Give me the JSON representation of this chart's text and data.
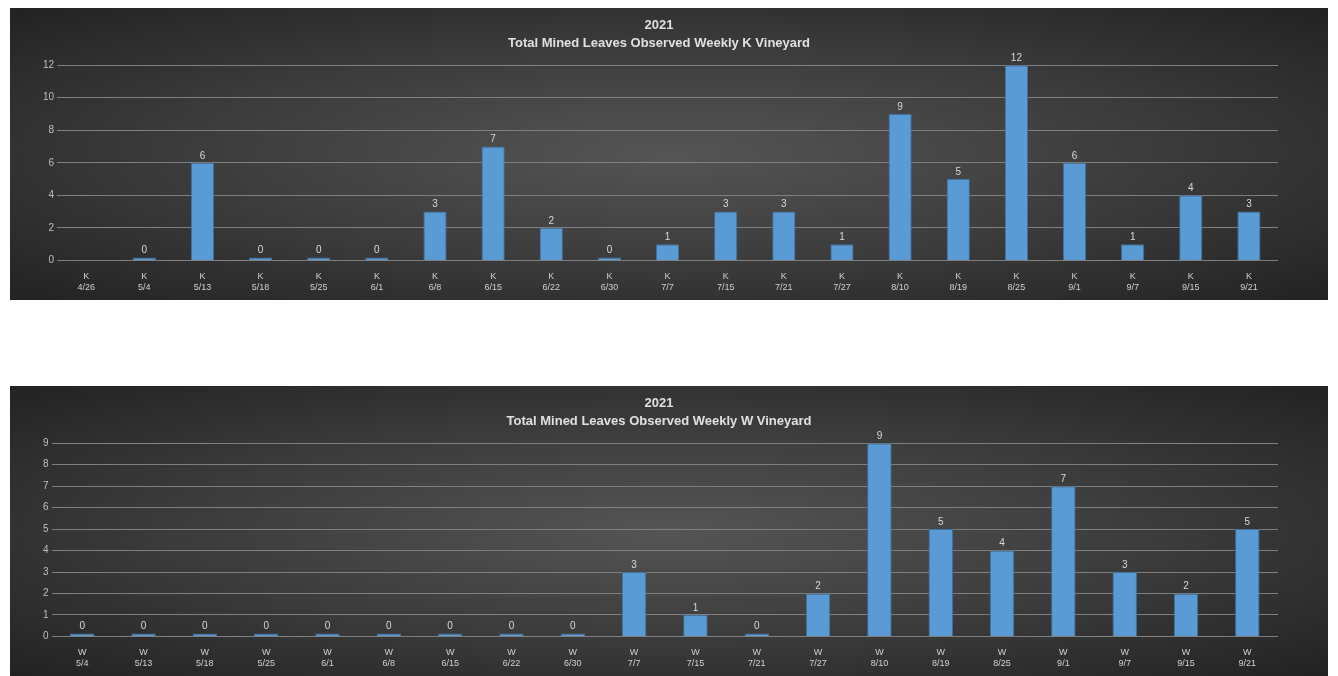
{
  "chart_data": [
    {
      "type": "bar",
      "title": "2021",
      "subtitle": "Total Mined Leaves Observed Weekly K Vineyard",
      "categories": [
        "K\n4/26",
        "K\n5/4",
        "K\n5/13",
        "K\n5/18",
        "K\n5/25",
        "K\n6/1",
        "K\n6/8",
        "K\n6/15",
        "K\n6/22",
        "K\n6/30",
        "K\n7/7",
        "K\n7/15",
        "K\n7/21",
        "K\n7/27",
        "K\n8/10",
        "K\n8/19",
        "K\n8/25",
        "K\n9/1",
        "K\n9/7",
        "K\n9/15",
        "K\n9/21"
      ],
      "values": [
        null,
        0,
        6,
        0,
        0,
        0,
        3,
        7,
        2,
        0,
        1,
        3,
        3,
        1,
        9,
        5,
        12,
        6,
        1,
        4,
        3
      ],
      "color": "#5b9bd5",
      "ylim": [
        0,
        12
      ],
      "yticks": [
        0,
        2,
        4,
        6,
        8,
        10,
        12
      ],
      "grid": "y",
      "data_labels": true
    },
    {
      "type": "bar",
      "title": "2021",
      "subtitle": "Total Mined Leaves Observed Weekly W Vineyard",
      "categories": [
        "W\n5/4",
        "W\n5/13",
        "W\n5/18",
        "W\n5/25",
        "W\n6/1",
        "W\n6/8",
        "W\n6/15",
        "W\n6/22",
        "W\n6/30",
        "W\n7/7",
        "W\n7/15",
        "W\n7/21",
        "W\n7/27",
        "W\n8/10",
        "W\n8/19",
        "W\n8/25",
        "W\n9/1",
        "W\n9/7",
        "W\n9/15",
        "W\n9/21"
      ],
      "values": [
        0,
        0,
        0,
        0,
        0,
        0,
        0,
        0,
        0,
        3,
        1,
        0,
        2,
        9,
        5,
        4,
        7,
        3,
        2,
        5
      ],
      "color": "#5b9bd5",
      "ylim": [
        0,
        9
      ],
      "yticks": [
        0,
        1,
        2,
        3,
        4,
        5,
        6,
        7,
        8,
        9
      ],
      "grid": "y",
      "data_labels": true
    }
  ]
}
